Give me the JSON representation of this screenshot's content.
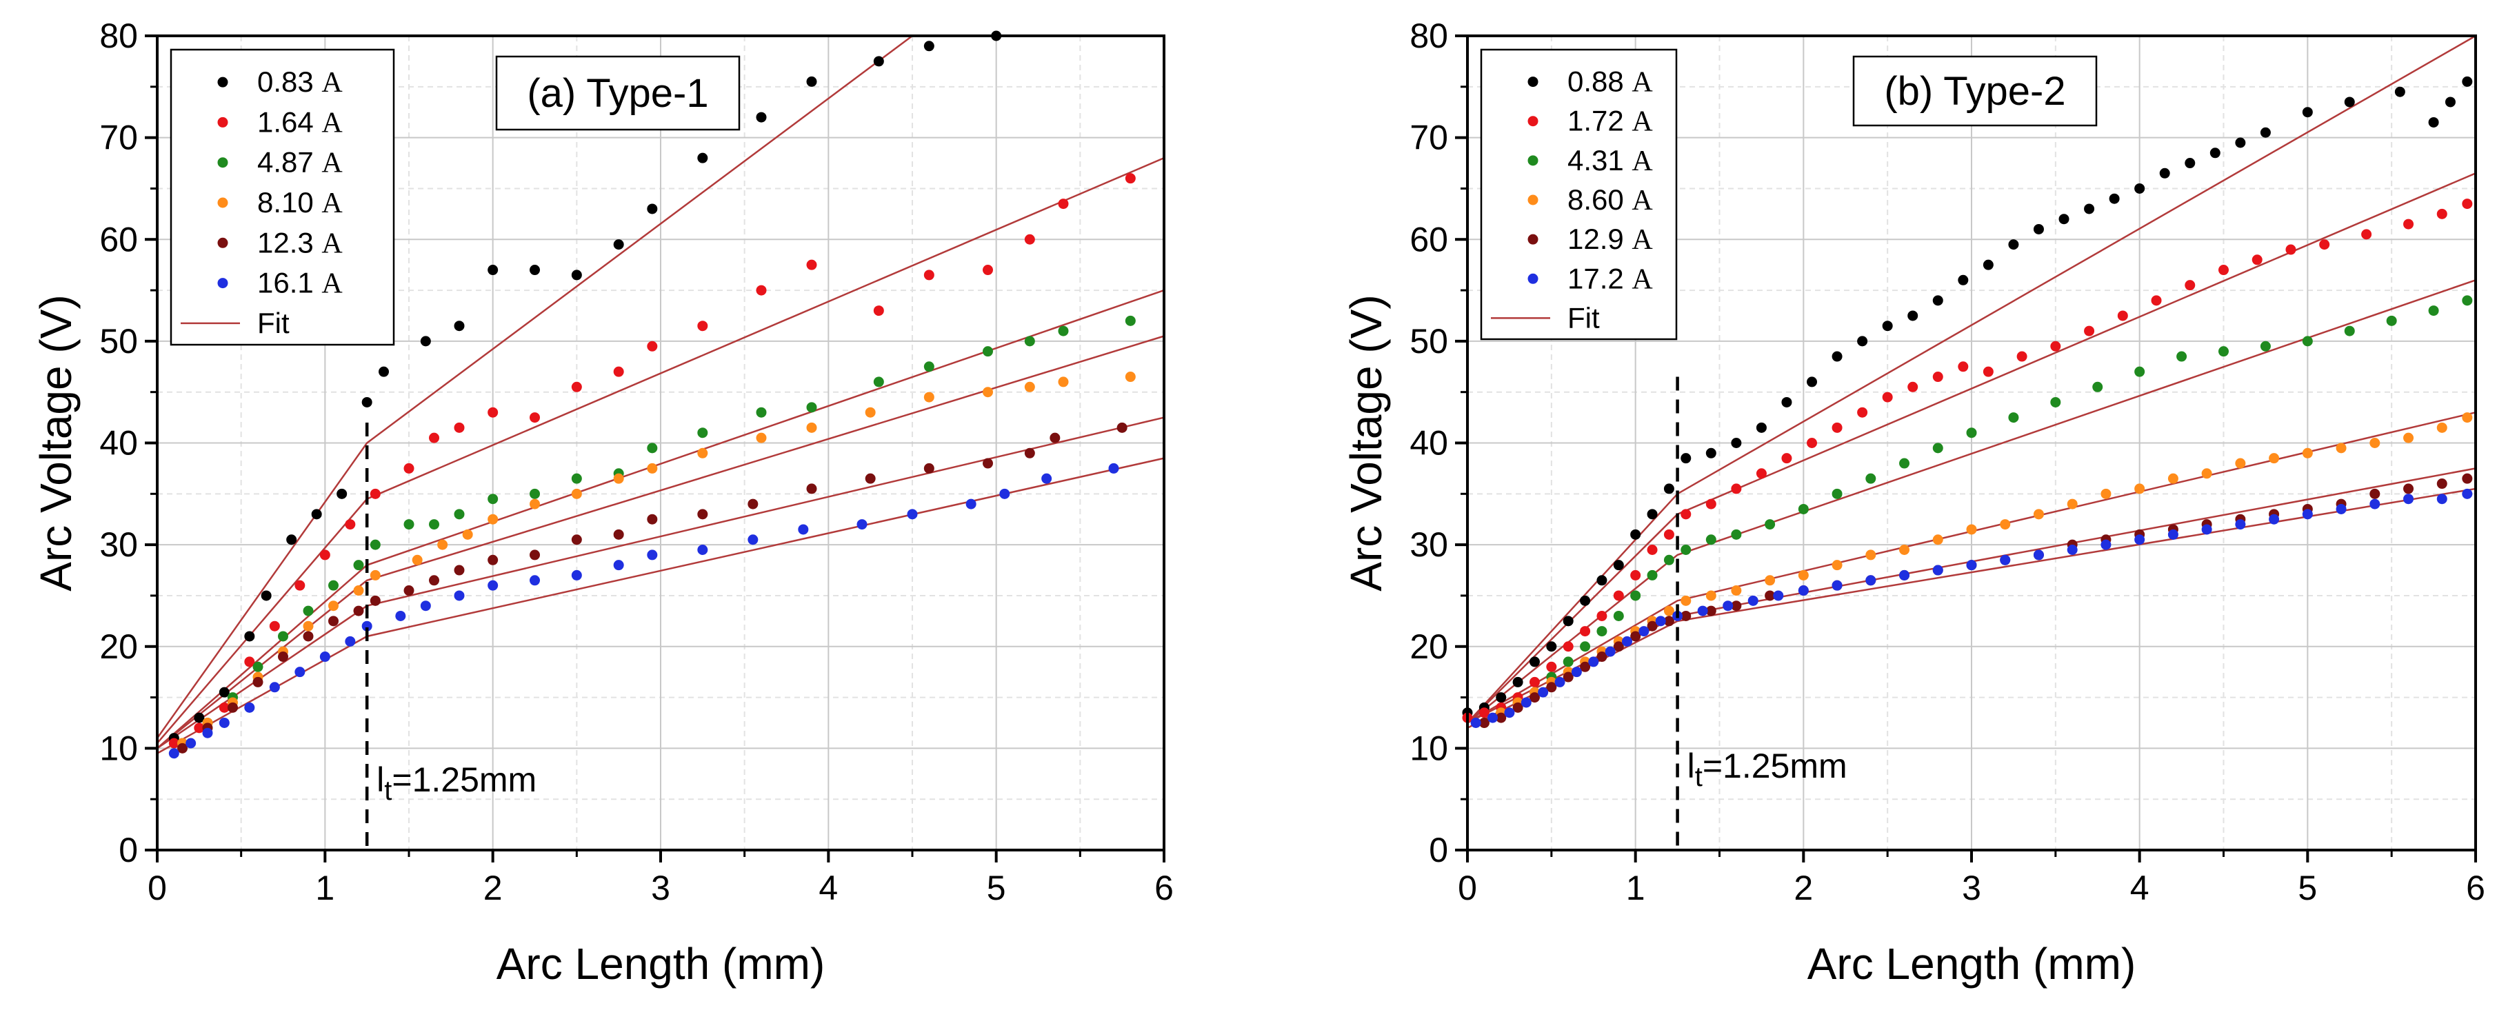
{
  "colors": {
    "series": [
      "#000000",
      "#e8141a",
      "#1f8a1f",
      "#ff8c1a",
      "#7a0f0f",
      "#1f2fe0"
    ],
    "fit": "#b23a3a",
    "grid_major": "#c8c8c8",
    "grid_minor": "#e2e2e2"
  },
  "chart_data": [
    {
      "type": "scatter",
      "title": "(a) Type-1",
      "xlabel": "Arc Length (mm)",
      "ylabel": "Arc Voltage (V)",
      "xlim": [
        0,
        6
      ],
      "ylim": [
        0,
        80
      ],
      "xticks": [
        0,
        1,
        2,
        3,
        4,
        5,
        6
      ],
      "yticks": [
        0,
        10,
        20,
        30,
        40,
        50,
        60,
        70,
        80
      ],
      "grid": true,
      "legend_position": "top-left",
      "fit_label": "Fit",
      "annotation": {
        "symbol": "l",
        "subscript": "t",
        "text": "=1.25mm",
        "x": 1.25
      },
      "series": [
        {
          "name": "0.83",
          "unit": "A",
          "x": [
            0.1,
            0.25,
            0.4,
            0.55,
            0.65,
            0.8,
            0.95,
            1.1,
            1.25,
            1.35,
            1.6,
            1.8,
            2.0,
            2.25,
            2.5,
            2.75,
            2.95,
            3.25,
            3.6,
            3.9,
            4.3,
            4.6,
            5.0
          ],
          "y": [
            11,
            13,
            15.5,
            21,
            25,
            30.5,
            33,
            35,
            44,
            47,
            50,
            51.5,
            57,
            57,
            56.5,
            59.5,
            63,
            68,
            72,
            75.5,
            77.5,
            79,
            80
          ],
          "fit": [
            [
              0,
              11
            ],
            [
              1.25,
              40
            ],
            [
              4.5,
              80
            ]
          ]
        },
        {
          "name": "1.64",
          "unit": "A",
          "x": [
            0.1,
            0.25,
            0.4,
            0.55,
            0.7,
            0.85,
            1.0,
            1.15,
            1.3,
            1.5,
            1.65,
            1.8,
            2.0,
            2.25,
            2.5,
            2.75,
            2.95,
            3.25,
            3.6,
            3.9,
            4.3,
            4.6,
            4.95,
            5.2,
            5.4,
            5.8
          ],
          "y": [
            10.5,
            12,
            14,
            18.5,
            22,
            26,
            29,
            32,
            35,
            37.5,
            40.5,
            41.5,
            43,
            42.5,
            45.5,
            47,
            49.5,
            51.5,
            55,
            57.5,
            53,
            56.5,
            57,
            60,
            63.5,
            66
          ],
          "fit": [
            [
              0,
              10.5
            ],
            [
              1.25,
              34.5
            ],
            [
              6,
              68
            ]
          ]
        },
        {
          "name": "4.87",
          "unit": "A",
          "x": [
            0.15,
            0.3,
            0.45,
            0.6,
            0.75,
            0.9,
            1.05,
            1.2,
            1.3,
            1.5,
            1.65,
            1.8,
            2.0,
            2.25,
            2.5,
            2.75,
            2.95,
            3.25,
            3.6,
            3.9,
            4.3,
            4.6,
            4.95,
            5.2,
            5.4,
            5.8
          ],
          "y": [
            10.5,
            12.5,
            15,
            18,
            21,
            23.5,
            26,
            28,
            30,
            32,
            32,
            33,
            34.5,
            35,
            36.5,
            37,
            39.5,
            41,
            43,
            43.5,
            46,
            47.5,
            49,
            50,
            51,
            52
          ],
          "fit": [
            [
              0,
              10
            ],
            [
              1.25,
              28
            ],
            [
              6,
              55
            ]
          ]
        },
        {
          "name": "8.10",
          "unit": "A",
          "x": [
            0.15,
            0.3,
            0.45,
            0.6,
            0.75,
            0.9,
            1.05,
            1.2,
            1.3,
            1.55,
            1.7,
            1.85,
            2.0,
            2.25,
            2.5,
            2.75,
            2.95,
            3.25,
            3.6,
            3.9,
            4.25,
            4.6,
            4.95,
            5.2,
            5.4,
            5.8
          ],
          "y": [
            10.5,
            12.5,
            14.5,
            17,
            19.5,
            22,
            24,
            25.5,
            27,
            28.5,
            30,
            31,
            32.5,
            34,
            35,
            36.5,
            37.5,
            39,
            40.5,
            41.5,
            43,
            44.5,
            45,
            45.5,
            46,
            46.5
          ],
          "fit": [
            [
              0,
              10
            ],
            [
              1.25,
              26.5
            ],
            [
              6,
              50.5
            ]
          ]
        },
        {
          "name": "12.3",
          "unit": "A",
          "x": [
            0.15,
            0.3,
            0.45,
            0.6,
            0.75,
            0.9,
            1.05,
            1.2,
            1.3,
            1.5,
            1.65,
            1.8,
            2.0,
            2.25,
            2.5,
            2.75,
            2.95,
            3.25,
            3.55,
            3.9,
            4.25,
            4.6,
            4.95,
            5.2,
            5.35,
            5.75
          ],
          "y": [
            10,
            12,
            14,
            16.5,
            19,
            21,
            22.5,
            23.5,
            24.5,
            25.5,
            26.5,
            27.5,
            28.5,
            29,
            30.5,
            31,
            32.5,
            33,
            34,
            35.5,
            36.5,
            37.5,
            38,
            39,
            40.5,
            41.5
          ],
          "fit": [
            [
              0,
              10
            ],
            [
              1.25,
              24
            ],
            [
              6,
              42.5
            ]
          ]
        },
        {
          "name": "16.1",
          "unit": "A",
          "x": [
            0.1,
            0.2,
            0.3,
            0.4,
            0.55,
            0.7,
            0.85,
            1.0,
            1.15,
            1.25,
            1.45,
            1.6,
            1.8,
            2.0,
            2.25,
            2.5,
            2.75,
            2.95,
            3.25,
            3.55,
            3.85,
            4.2,
            4.5,
            4.85,
            5.05,
            5.3,
            5.7
          ],
          "y": [
            9.5,
            10.5,
            11.5,
            12.5,
            14,
            16,
            17.5,
            19,
            20.5,
            22,
            23,
            24,
            25,
            26,
            26.5,
            27,
            28,
            29,
            29.5,
            30.5,
            31.5,
            32,
            33,
            34,
            35,
            36.5,
            37.5
          ],
          "fit": [
            [
              0,
              9.5
            ],
            [
              1.25,
              21
            ],
            [
              6,
              38.5
            ]
          ]
        }
      ]
    },
    {
      "type": "scatter",
      "title": "(b) Type-2",
      "xlabel": "Arc Length (mm)",
      "ylabel": "Arc Voltage (V)",
      "xlim": [
        0,
        6
      ],
      "ylim": [
        0,
        80
      ],
      "xticks": [
        0,
        1,
        2,
        3,
        4,
        5,
        6
      ],
      "yticks": [
        0,
        10,
        20,
        30,
        40,
        50,
        60,
        70,
        80
      ],
      "grid": true,
      "legend_position": "top-left",
      "fit_label": "Fit",
      "annotation": {
        "symbol": "l",
        "subscript": "t",
        "text": "=1.25mm",
        "x": 1.25
      },
      "series": [
        {
          "name": "0.88",
          "unit": "A",
          "x": [
            0,
            0.1,
            0.2,
            0.3,
            0.4,
            0.5,
            0.6,
            0.7,
            0.8,
            0.9,
            1.0,
            1.1,
            1.2,
            1.3,
            1.45,
            1.6,
            1.75,
            1.9,
            2.05,
            2.2,
            2.35,
            2.5,
            2.65,
            2.8,
            2.95,
            3.1,
            3.25,
            3.4,
            3.55,
            3.7,
            3.85,
            4.0,
            4.15,
            4.3,
            4.45,
            4.6,
            4.75,
            5.0,
            5.25,
            5.55,
            5.75,
            5.85,
            5.95
          ],
          "y": [
            13.5,
            14,
            15,
            16.5,
            18.5,
            20,
            22.5,
            24.5,
            26.5,
            28,
            31,
            33,
            35.5,
            38.5,
            39,
            40,
            41.5,
            44,
            46,
            48.5,
            50,
            51.5,
            52.5,
            54,
            56,
            57.5,
            59.5,
            61,
            62,
            63,
            64,
            65,
            66.5,
            67.5,
            68.5,
            69.5,
            70.5,
            72.5,
            73.5,
            74.5,
            71.5,
            73.5,
            75.5
          ],
          "fit": [
            [
              0,
              12.5
            ],
            [
              1.25,
              35
            ],
            [
              6,
              80
            ]
          ]
        },
        {
          "name": "1.72",
          "unit": "A",
          "x": [
            0,
            0.1,
            0.2,
            0.3,
            0.4,
            0.5,
            0.6,
            0.7,
            0.8,
            0.9,
            1.0,
            1.1,
            1.2,
            1.3,
            1.45,
            1.6,
            1.75,
            1.9,
            2.05,
            2.2,
            2.35,
            2.5,
            2.65,
            2.8,
            2.95,
            3.1,
            3.3,
            3.5,
            3.7,
            3.9,
            4.1,
            4.3,
            4.5,
            4.7,
            4.9,
            5.1,
            5.35,
            5.6,
            5.8,
            5.95
          ],
          "y": [
            13,
            13.5,
            14,
            15,
            16.5,
            18,
            20,
            21.5,
            23,
            25,
            27,
            29.5,
            31,
            33,
            34,
            35.5,
            37,
            38.5,
            40,
            41.5,
            43,
            44.5,
            45.5,
            46.5,
            47.5,
            47,
            48.5,
            49.5,
            51,
            52.5,
            54,
            55.5,
            57,
            58,
            59,
            59.5,
            60.5,
            61.5,
            62.5,
            63.5
          ],
          "fit": [
            [
              0,
              12.5
            ],
            [
              1.25,
              33
            ],
            [
              6,
              66.5
            ]
          ]
        },
        {
          "name": "4.31",
          "unit": "A",
          "x": [
            0.1,
            0.2,
            0.3,
            0.4,
            0.5,
            0.6,
            0.7,
            0.8,
            0.9,
            1.0,
            1.1,
            1.2,
            1.3,
            1.45,
            1.6,
            1.8,
            2.0,
            2.2,
            2.4,
            2.6,
            2.8,
            3.0,
            3.25,
            3.5,
            3.75,
            4.0,
            4.25,
            4.5,
            4.75,
            5.0,
            5.25,
            5.5,
            5.75,
            5.95
          ],
          "y": [
            12.5,
            13.5,
            14.5,
            15.5,
            17,
            18.5,
            20,
            21.5,
            23,
            25,
            27,
            28.5,
            29.5,
            30.5,
            31,
            32,
            33.5,
            35,
            36.5,
            38,
            39.5,
            41,
            42.5,
            44,
            45.5,
            47,
            48.5,
            49,
            49.5,
            50,
            51,
            52,
            53,
            54
          ],
          "fit": [
            [
              0,
              12.5
            ],
            [
              1.25,
              29
            ],
            [
              6,
              56
            ]
          ]
        },
        {
          "name": "8.60",
          "unit": "A",
          "x": [
            0.1,
            0.2,
            0.3,
            0.4,
            0.5,
            0.6,
            0.7,
            0.8,
            0.9,
            1.0,
            1.1,
            1.2,
            1.3,
            1.45,
            1.6,
            1.8,
            2.0,
            2.2,
            2.4,
            2.6,
            2.8,
            3.0,
            3.2,
            3.4,
            3.6,
            3.8,
            4.0,
            4.2,
            4.4,
            4.6,
            4.8,
            5.0,
            5.2,
            5.4,
            5.6,
            5.8,
            5.95
          ],
          "y": [
            12.5,
            13.5,
            14.5,
            15.5,
            16.5,
            17.5,
            18.5,
            19.5,
            20.5,
            21.5,
            22.5,
            23.5,
            24.5,
            25,
            25.5,
            26.5,
            27,
            28,
            29,
            29.5,
            30.5,
            31.5,
            32,
            33,
            34,
            35,
            35.5,
            36.5,
            37,
            38,
            38.5,
            39,
            39.5,
            40,
            40.5,
            41.5,
            42.5
          ],
          "fit": [
            [
              0,
              12.5
            ],
            [
              1.25,
              24.5
            ],
            [
              6,
              43
            ]
          ]
        },
        {
          "name": "12.9",
          "unit": "A",
          "x": [
            0.1,
            0.2,
            0.3,
            0.4,
            0.5,
            0.6,
            0.7,
            0.8,
            0.9,
            1.0,
            1.1,
            1.2,
            1.3,
            1.45,
            1.6,
            1.8,
            2.0,
            2.2,
            2.4,
            2.6,
            2.8,
            3.0,
            3.2,
            3.4,
            3.6,
            3.8,
            4.0,
            4.2,
            4.4,
            4.6,
            4.8,
            5.0,
            5.2,
            5.4,
            5.6,
            5.8,
            5.95
          ],
          "y": [
            12.5,
            13,
            14,
            15,
            16,
            17,
            18,
            19,
            20,
            21,
            22,
            22.5,
            23,
            23.5,
            24,
            25,
            25.5,
            26,
            26.5,
            27,
            27.5,
            28,
            28.5,
            29,
            30,
            30.5,
            31,
            31.5,
            32,
            32.5,
            33,
            33.5,
            34,
            35,
            35.5,
            36,
            36.5
          ],
          "fit": [
            [
              0,
              12.5
            ],
            [
              1.25,
              23
            ],
            [
              6,
              37.5
            ]
          ]
        },
        {
          "name": "17.2",
          "unit": "A",
          "x": [
            0.05,
            0.15,
            0.25,
            0.35,
            0.45,
            0.55,
            0.65,
            0.75,
            0.85,
            0.95,
            1.05,
            1.15,
            1.25,
            1.4,
            1.55,
            1.7,
            1.85,
            2.0,
            2.2,
            2.4,
            2.6,
            2.8,
            3.0,
            3.2,
            3.4,
            3.6,
            3.8,
            4.0,
            4.2,
            4.4,
            4.6,
            4.8,
            5.0,
            5.2,
            5.4,
            5.6,
            5.8,
            5.95
          ],
          "y": [
            12.5,
            13,
            13.5,
            14.5,
            15.5,
            16.5,
            17.5,
            18.5,
            19.5,
            20.5,
            21.5,
            22.5,
            23,
            23.5,
            24,
            24.5,
            25,
            25.5,
            26,
            26.5,
            27,
            27.5,
            28,
            28.5,
            29,
            29.5,
            30,
            30.5,
            31,
            31.5,
            32,
            32.5,
            33,
            33.5,
            34,
            34.5,
            34.5,
            35
          ],
          "fit": [
            [
              0,
              12
            ],
            [
              1.25,
              22.5
            ],
            [
              6,
              35.5
            ]
          ]
        }
      ]
    }
  ]
}
